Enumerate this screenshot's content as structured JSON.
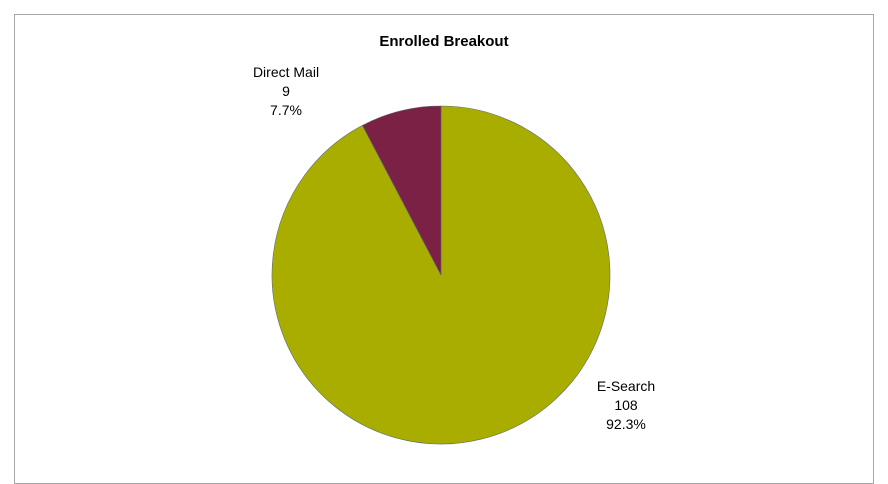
{
  "chart_data": {
    "type": "pie",
    "title": "Enrolled Breakout",
    "slices": [
      {
        "label": "E-Search",
        "value": 108,
        "percent": "92.3%",
        "color": "#a9ad00"
      },
      {
        "label": "Direct Mail",
        "value": 9,
        "percent": "7.7%",
        "color": "#7b2145"
      }
    ],
    "legend": "none"
  }
}
